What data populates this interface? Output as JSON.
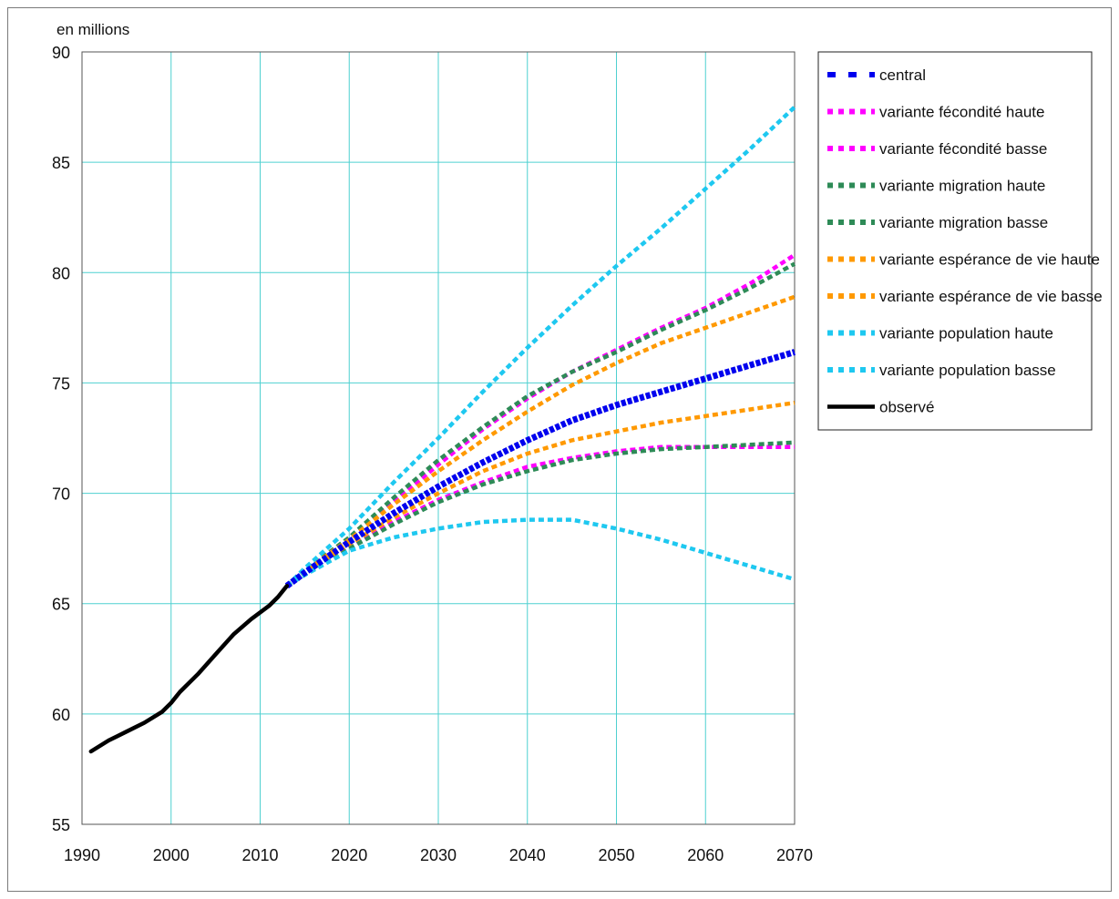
{
  "chart_data": {
    "type": "line",
    "unit_label": "en millions",
    "x_ticks": [
      1990,
      2000,
      2010,
      2020,
      2030,
      2040,
      2050,
      2060,
      2070
    ],
    "y_ticks": [
      55,
      60,
      65,
      70,
      75,
      80,
      85,
      90
    ],
    "xlim": [
      1990,
      2070
    ],
    "ylim": [
      55,
      90
    ],
    "grid": true,
    "legend_position": "top-right",
    "series": [
      {
        "name": "central",
        "color": "#0000ee",
        "dash": "dotted-bold",
        "points": [
          [
            2013,
            65.8
          ],
          [
            2015,
            66.4
          ],
          [
            2020,
            67.8
          ],
          [
            2025,
            69.1
          ],
          [
            2030,
            70.3
          ],
          [
            2035,
            71.4
          ],
          [
            2040,
            72.4
          ],
          [
            2045,
            73.3
          ],
          [
            2050,
            74.0
          ],
          [
            2055,
            74.6
          ],
          [
            2060,
            75.2
          ],
          [
            2065,
            75.8
          ],
          [
            2070,
            76.4
          ]
        ]
      },
      {
        "name": "variante fécondité haute",
        "color": "#ff00ff",
        "dash": "dotted",
        "points": [
          [
            2013,
            65.8
          ],
          [
            2015,
            66.5
          ],
          [
            2020,
            67.9
          ],
          [
            2025,
            69.6
          ],
          [
            2030,
            71.3
          ],
          [
            2035,
            72.9
          ],
          [
            2040,
            74.3
          ],
          [
            2045,
            75.5
          ],
          [
            2050,
            76.5
          ],
          [
            2055,
            77.5
          ],
          [
            2060,
            78.4
          ],
          [
            2065,
            79.5
          ],
          [
            2070,
            80.8
          ]
        ]
      },
      {
        "name": "variante fécondité basse",
        "color": "#ff00ff",
        "dash": "dotted",
        "points": [
          [
            2013,
            65.8
          ],
          [
            2015,
            66.4
          ],
          [
            2020,
            67.6
          ],
          [
            2025,
            68.7
          ],
          [
            2030,
            69.7
          ],
          [
            2035,
            70.5
          ],
          [
            2040,
            71.2
          ],
          [
            2045,
            71.6
          ],
          [
            2050,
            71.9
          ],
          [
            2055,
            72.1
          ],
          [
            2060,
            72.1
          ],
          [
            2065,
            72.1
          ],
          [
            2070,
            72.1
          ]
        ]
      },
      {
        "name": "variante migration haute",
        "color": "#2e8b57",
        "dash": "dotted",
        "points": [
          [
            2013,
            65.8
          ],
          [
            2015,
            66.5
          ],
          [
            2020,
            68.0
          ],
          [
            2025,
            69.8
          ],
          [
            2030,
            71.5
          ],
          [
            2035,
            73.0
          ],
          [
            2040,
            74.4
          ],
          [
            2045,
            75.5
          ],
          [
            2050,
            76.4
          ],
          [
            2055,
            77.4
          ],
          [
            2060,
            78.3
          ],
          [
            2065,
            79.3
          ],
          [
            2070,
            80.4
          ]
        ]
      },
      {
        "name": "variante migration basse",
        "color": "#2e8b57",
        "dash": "dotted",
        "points": [
          [
            2013,
            65.8
          ],
          [
            2015,
            66.3
          ],
          [
            2020,
            67.5
          ],
          [
            2025,
            68.6
          ],
          [
            2030,
            69.6
          ],
          [
            2035,
            70.4
          ],
          [
            2040,
            71.0
          ],
          [
            2045,
            71.5
          ],
          [
            2050,
            71.8
          ],
          [
            2055,
            72.0
          ],
          [
            2060,
            72.1
          ],
          [
            2065,
            72.2
          ],
          [
            2070,
            72.3
          ]
        ]
      },
      {
        "name": "variante espérance de vie haute",
        "color": "#ff9900",
        "dash": "dotted",
        "points": [
          [
            2013,
            65.8
          ],
          [
            2015,
            66.5
          ],
          [
            2020,
            67.9
          ],
          [
            2025,
            69.5
          ],
          [
            2030,
            71.0
          ],
          [
            2035,
            72.4
          ],
          [
            2040,
            73.7
          ],
          [
            2045,
            74.9
          ],
          [
            2050,
            75.9
          ],
          [
            2055,
            76.8
          ],
          [
            2060,
            77.5
          ],
          [
            2065,
            78.2
          ],
          [
            2070,
            78.9
          ]
        ]
      },
      {
        "name": "variante espérance de vie basse",
        "color": "#ff9900",
        "dash": "dotted",
        "points": [
          [
            2013,
            65.8
          ],
          [
            2015,
            66.4
          ],
          [
            2020,
            67.7
          ],
          [
            2025,
            68.9
          ],
          [
            2030,
            70.0
          ],
          [
            2035,
            71.0
          ],
          [
            2040,
            71.8
          ],
          [
            2045,
            72.4
          ],
          [
            2050,
            72.8
          ],
          [
            2055,
            73.2
          ],
          [
            2060,
            73.5
          ],
          [
            2065,
            73.8
          ],
          [
            2070,
            74.1
          ]
        ]
      },
      {
        "name": "variante population haute",
        "color": "#1ec8f0",
        "dash": "dotted",
        "points": [
          [
            2013,
            65.8
          ],
          [
            2015,
            66.6
          ],
          [
            2020,
            68.4
          ],
          [
            2025,
            70.5
          ],
          [
            2030,
            72.5
          ],
          [
            2035,
            74.6
          ],
          [
            2040,
            76.6
          ],
          [
            2045,
            78.5
          ],
          [
            2050,
            80.3
          ],
          [
            2055,
            82.0
          ],
          [
            2060,
            83.8
          ],
          [
            2065,
            85.6
          ],
          [
            2070,
            87.5
          ]
        ]
      },
      {
        "name": "variante population basse",
        "color": "#1ec8f0",
        "dash": "dotted",
        "points": [
          [
            2013,
            65.8
          ],
          [
            2015,
            66.3
          ],
          [
            2020,
            67.4
          ],
          [
            2025,
            68.0
          ],
          [
            2030,
            68.4
          ],
          [
            2035,
            68.7
          ],
          [
            2040,
            68.8
          ],
          [
            2045,
            68.8
          ],
          [
            2050,
            68.4
          ],
          [
            2055,
            67.9
          ],
          [
            2060,
            67.3
          ],
          [
            2065,
            66.7
          ],
          [
            2070,
            66.1
          ]
        ]
      },
      {
        "name": "observé",
        "color": "#000000",
        "dash": "solid",
        "points": [
          [
            1991,
            58.3
          ],
          [
            1993,
            58.8
          ],
          [
            1995,
            59.2
          ],
          [
            1997,
            59.6
          ],
          [
            1999,
            60.1
          ],
          [
            2000,
            60.5
          ],
          [
            2001,
            61.0
          ],
          [
            2003,
            61.8
          ],
          [
            2005,
            62.7
          ],
          [
            2007,
            63.6
          ],
          [
            2009,
            64.3
          ],
          [
            2011,
            64.9
          ],
          [
            2012,
            65.3
          ],
          [
            2013,
            65.8
          ]
        ]
      }
    ]
  }
}
